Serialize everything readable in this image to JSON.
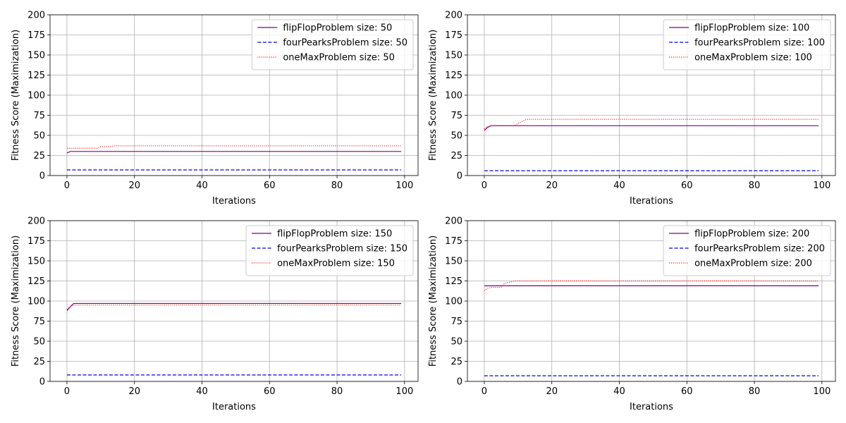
{
  "chart_data": [
    {
      "type": "line",
      "xlabel": "Iterations",
      "ylabel": "Fitness Score (Maximization)",
      "xlim": [
        -5,
        104
      ],
      "ylim": [
        0,
        200
      ],
      "xticks": [
        0,
        20,
        40,
        60,
        80,
        100
      ],
      "yticks": [
        0,
        25,
        50,
        75,
        100,
        125,
        150,
        175,
        200
      ],
      "grid": true,
      "legend": "top-right",
      "series": [
        {
          "name": "flipFlopProblem size: 50",
          "color": "#800080",
          "style": "solid",
          "points": [
            [
              0,
              28
            ],
            [
              1,
              30
            ],
            [
              99,
              30
            ]
          ]
        },
        {
          "name": "fourPearksProblem size: 50",
          "color": "#0000ff",
          "style": "dashed",
          "points": [
            [
              0,
              7
            ],
            [
              99,
              7
            ]
          ]
        },
        {
          "name": "oneMaxProblem size: 50",
          "color": "#ff0000",
          "style": "dotted",
          "points": [
            [
              0,
              34
            ],
            [
              9,
              34
            ],
            [
              10,
              36
            ],
            [
              13,
              36
            ],
            [
              14,
              37
            ],
            [
              99,
              37
            ]
          ]
        }
      ]
    },
    {
      "type": "line",
      "xlabel": "Iterations",
      "ylabel": "Fitness Score (Maximization)",
      "xlim": [
        -5,
        104
      ],
      "ylim": [
        0,
        200
      ],
      "xticks": [
        0,
        20,
        40,
        60,
        80,
        100
      ],
      "yticks": [
        0,
        25,
        50,
        75,
        100,
        125,
        150,
        175,
        200
      ],
      "grid": true,
      "legend": "top-right",
      "series": [
        {
          "name": "flipFlopProblem size: 100",
          "color": "#800080",
          "style": "solid",
          "points": [
            [
              0,
              56
            ],
            [
              1,
              60
            ],
            [
              2,
              62
            ],
            [
              99,
              62
            ]
          ]
        },
        {
          "name": "fourPearksProblem size: 100",
          "color": "#0000ff",
          "style": "dashed",
          "points": [
            [
              0,
              6
            ],
            [
              99,
              6
            ]
          ]
        },
        {
          "name": "oneMaxProblem size: 100",
          "color": "#ff0000",
          "style": "dotted",
          "points": [
            [
              0,
              58
            ],
            [
              1,
              61
            ],
            [
              2,
              62
            ],
            [
              9,
              62
            ],
            [
              10,
              65
            ],
            [
              11,
              67
            ],
            [
              12,
              69
            ],
            [
              13,
              70
            ],
            [
              99,
              70
            ]
          ]
        }
      ]
    },
    {
      "type": "line",
      "xlabel": "Iterations",
      "ylabel": "Fitness Score (Maximization)",
      "xlim": [
        -5,
        104
      ],
      "ylim": [
        0,
        200
      ],
      "xticks": [
        0,
        20,
        40,
        60,
        80,
        100
      ],
      "yticks": [
        0,
        25,
        50,
        75,
        100,
        125,
        150,
        175,
        200
      ],
      "grid": true,
      "legend": "top-right",
      "series": [
        {
          "name": "flipFlopProblem size: 150",
          "color": "#800080",
          "style": "solid",
          "points": [
            [
              0,
              88
            ],
            [
              1,
              93
            ],
            [
              2,
              97
            ],
            [
              99,
              97
            ]
          ]
        },
        {
          "name": "fourPearksProblem size: 150",
          "color": "#0000ff",
          "style": "dashed",
          "points": [
            [
              0,
              8
            ],
            [
              99,
              8
            ]
          ]
        },
        {
          "name": "oneMaxProblem size: 150",
          "color": "#ff0000",
          "style": "dotted",
          "points": [
            [
              0,
              90
            ],
            [
              1,
              93
            ],
            [
              2,
              95
            ],
            [
              99,
              95
            ]
          ]
        }
      ]
    },
    {
      "type": "line",
      "xlabel": "Iterations",
      "ylabel": "Fitness Score (Maximization)",
      "xlim": [
        -5,
        104
      ],
      "ylim": [
        0,
        200
      ],
      "xticks": [
        0,
        20,
        40,
        60,
        80,
        100
      ],
      "yticks": [
        0,
        25,
        50,
        75,
        100,
        125,
        150,
        175,
        200
      ],
      "grid": true,
      "legend": "top-right",
      "series": [
        {
          "name": "flipFlopProblem size: 200",
          "color": "#800080",
          "style": "solid",
          "points": [
            [
              0,
              119
            ],
            [
              99,
              119
            ]
          ]
        },
        {
          "name": "fourPearksProblem size: 200",
          "color": "#0000ff",
          "style": "dashed",
          "points": [
            [
              0,
              7
            ],
            [
              99,
              7
            ]
          ]
        },
        {
          "name": "oneMaxProblem size: 200",
          "color": "#ff0000",
          "style": "dotted",
          "points": [
            [
              0,
              113
            ],
            [
              1,
              116
            ],
            [
              2,
              117
            ],
            [
              5,
              117
            ],
            [
              6,
              122
            ],
            [
              7,
              123
            ],
            [
              8,
              124
            ],
            [
              9,
              125
            ],
            [
              99,
              125
            ]
          ]
        }
      ]
    }
  ]
}
